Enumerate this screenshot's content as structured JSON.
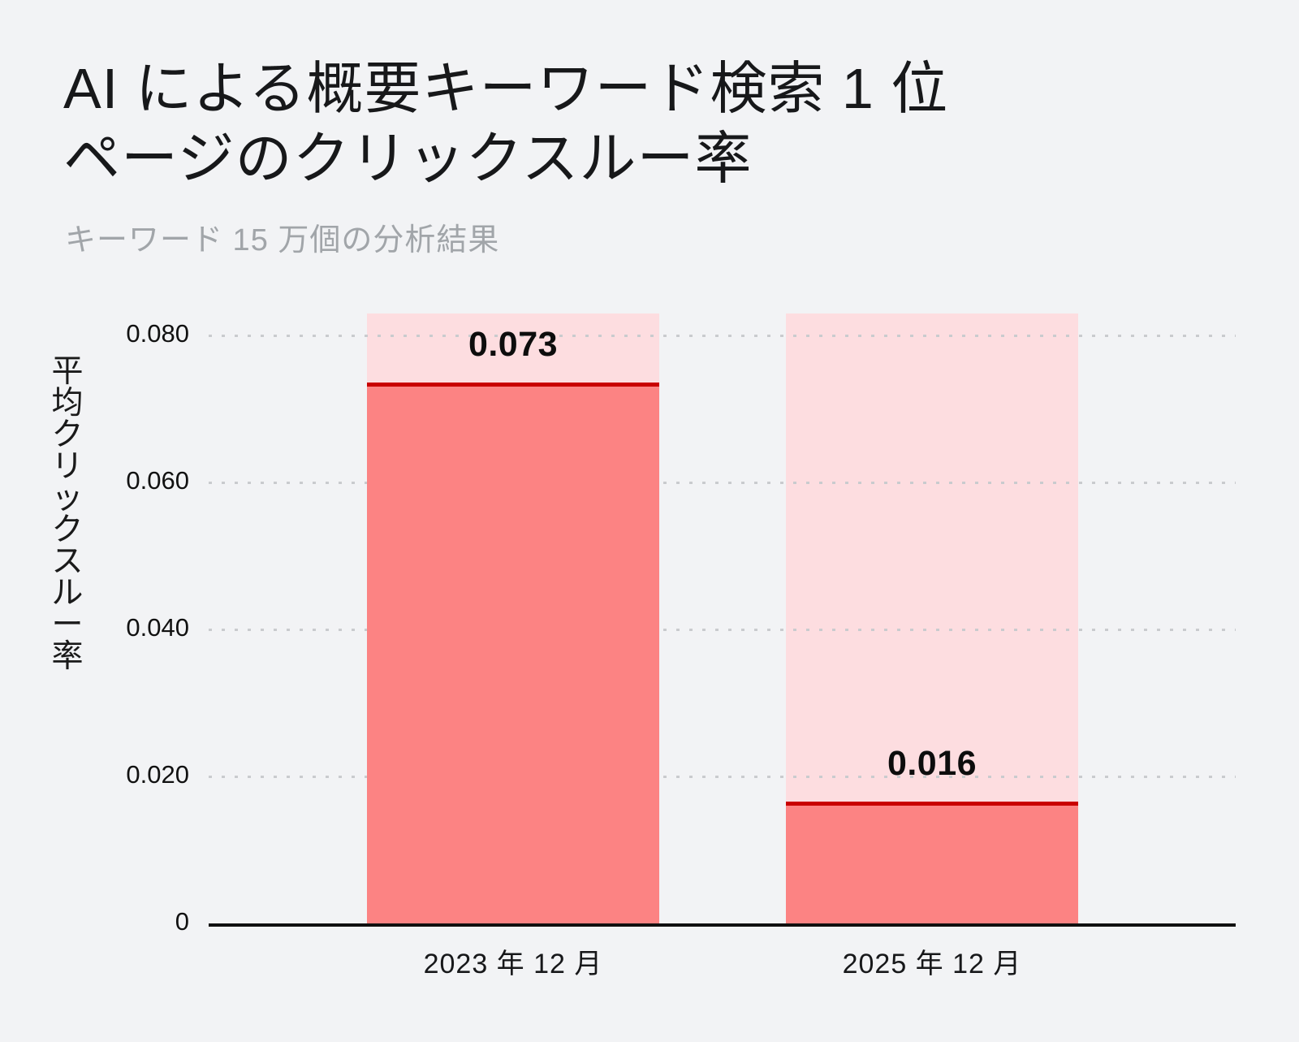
{
  "header": {
    "title": "AI による概要キーワード検索 1 位\nページのクリックスルー率",
    "subtitle": "キーワード 15 万個の分析結果"
  },
  "colors": {
    "background": "#F2F3F5",
    "bar_fill": "#FC8383",
    "bar_track": "#FDDDE0",
    "marker_line": "#C90000",
    "gridline": "#C9CBCE",
    "axis_line": "#101010",
    "title_text": "#17181A",
    "subtitle_text": "#A1A5A9",
    "label_text": "#111111"
  },
  "chart_data": {
    "type": "bar",
    "title": "AI による概要キーワード検索 1 位ページのクリックスルー率",
    "subtitle": "キーワード 15 万個の分析結果",
    "xlabel": "",
    "ylabel": "平均クリックスルー率",
    "categories": [
      "2023 年 12 月",
      "2025 年 12 月"
    ],
    "values": [
      0.073,
      0.016
    ],
    "value_labels": [
      "0.073",
      "0.016"
    ],
    "ylim": [
      0,
      0.083
    ],
    "yticks": [
      0,
      0.02,
      0.04,
      0.06,
      0.08
    ],
    "ytick_labels": [
      "0",
      "0.020",
      "0.040",
      "0.060",
      "0.080"
    ],
    "grid": "horizontal-dotted",
    "legend_position": "none"
  }
}
